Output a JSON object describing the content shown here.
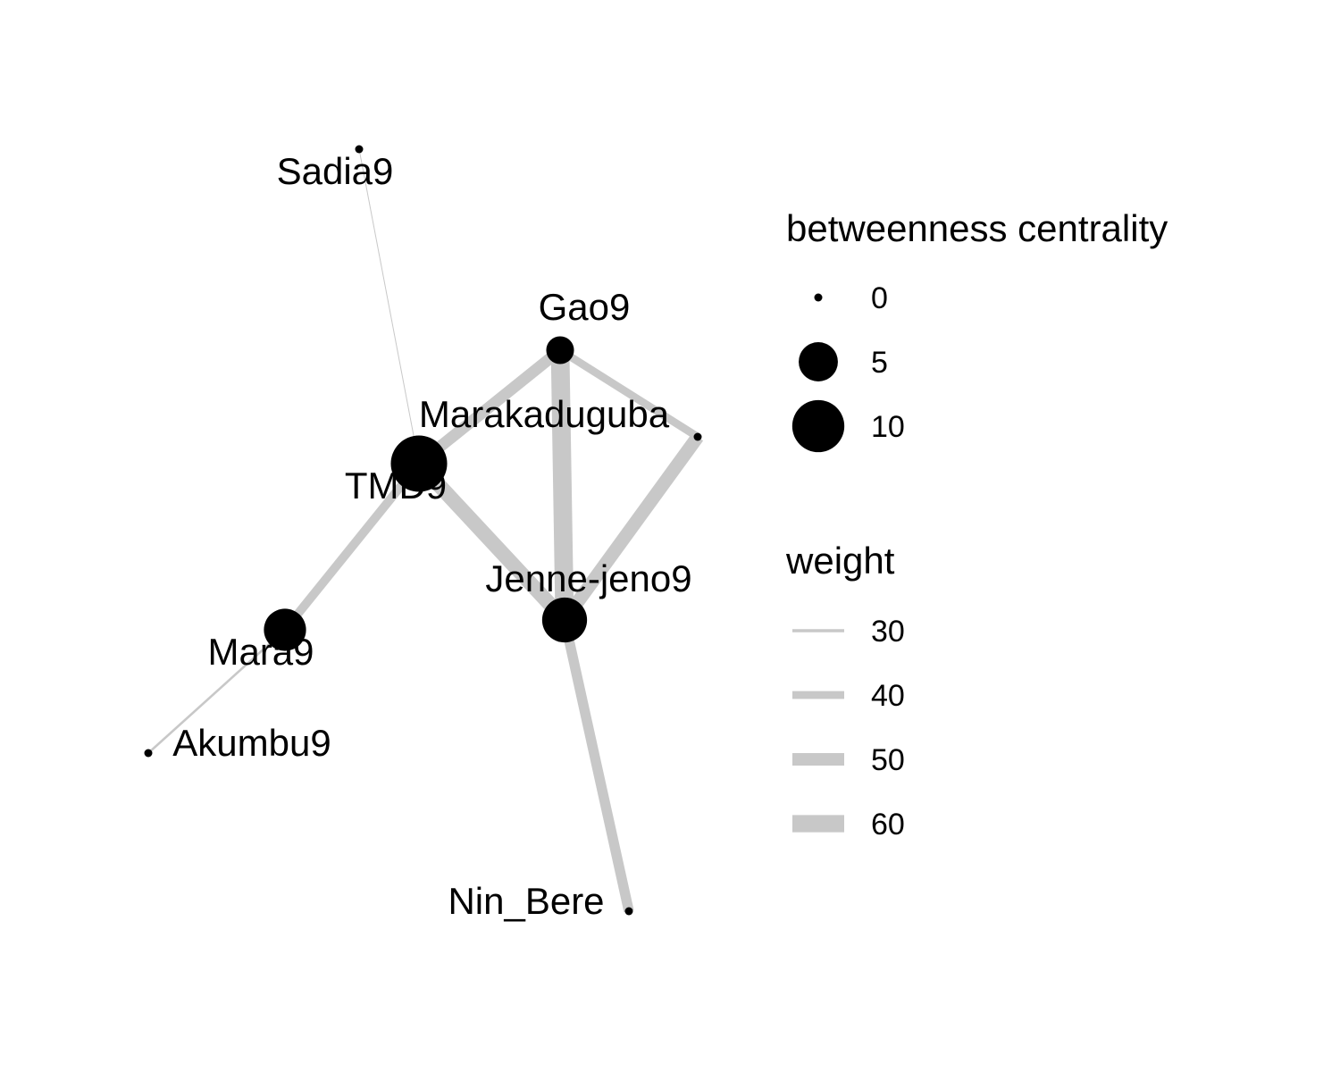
{
  "colors": {
    "edge": "#c8c8c8",
    "node": "#000000",
    "background": "#ffffff"
  },
  "nodes": [
    {
      "id": "Sadia9",
      "label": "Sadia9",
      "betweenness": 0
    },
    {
      "id": "Gao9",
      "label": "Gao9",
      "betweenness": 2
    },
    {
      "id": "Marakaduguba",
      "label": "Marakaduguba",
      "betweenness": 0
    },
    {
      "id": "TMD9",
      "label": "TMD9",
      "betweenness": 12
    },
    {
      "id": "Jenne-jeno9",
      "label": "Jenne-jeno9",
      "betweenness": 7
    },
    {
      "id": "Mara9",
      "label": "Mara9",
      "betweenness": 6
    },
    {
      "id": "Akumbu9",
      "label": "Akumbu9",
      "betweenness": 0
    },
    {
      "id": "Nin_Bere",
      "label": "Nin_Bere",
      "betweenness": 0
    }
  ],
  "edges": [
    {
      "source": "Sadia9",
      "target": "TMD9",
      "weight": 25
    },
    {
      "source": "TMD9",
      "target": "Gao9",
      "weight": 48
    },
    {
      "source": "TMD9",
      "target": "Jenne-jeno9",
      "weight": 55
    },
    {
      "source": "TMD9",
      "target": "Mara9",
      "weight": 42
    },
    {
      "source": "Gao9",
      "target": "Jenne-jeno9",
      "weight": 63
    },
    {
      "source": "Gao9",
      "target": "Marakaduguba",
      "weight": 40
    },
    {
      "source": "Marakaduguba",
      "target": "Jenne-jeno9",
      "weight": 52
    },
    {
      "source": "Jenne-jeno9",
      "target": "Nin_Bere",
      "weight": 45
    },
    {
      "source": "Mara9",
      "target": "Akumbu9",
      "weight": 28
    }
  ],
  "legend": {
    "size": {
      "title": "betweenness centrality",
      "items": [
        {
          "label": "0",
          "value": 0
        },
        {
          "label": "5",
          "value": 5
        },
        {
          "label": "10",
          "value": 10
        }
      ]
    },
    "width": {
      "title": "weight",
      "items": [
        {
          "label": "30",
          "value": 30
        },
        {
          "label": "40",
          "value": 40
        },
        {
          "label": "50",
          "value": 50
        },
        {
          "label": "60",
          "value": 60
        }
      ]
    }
  }
}
